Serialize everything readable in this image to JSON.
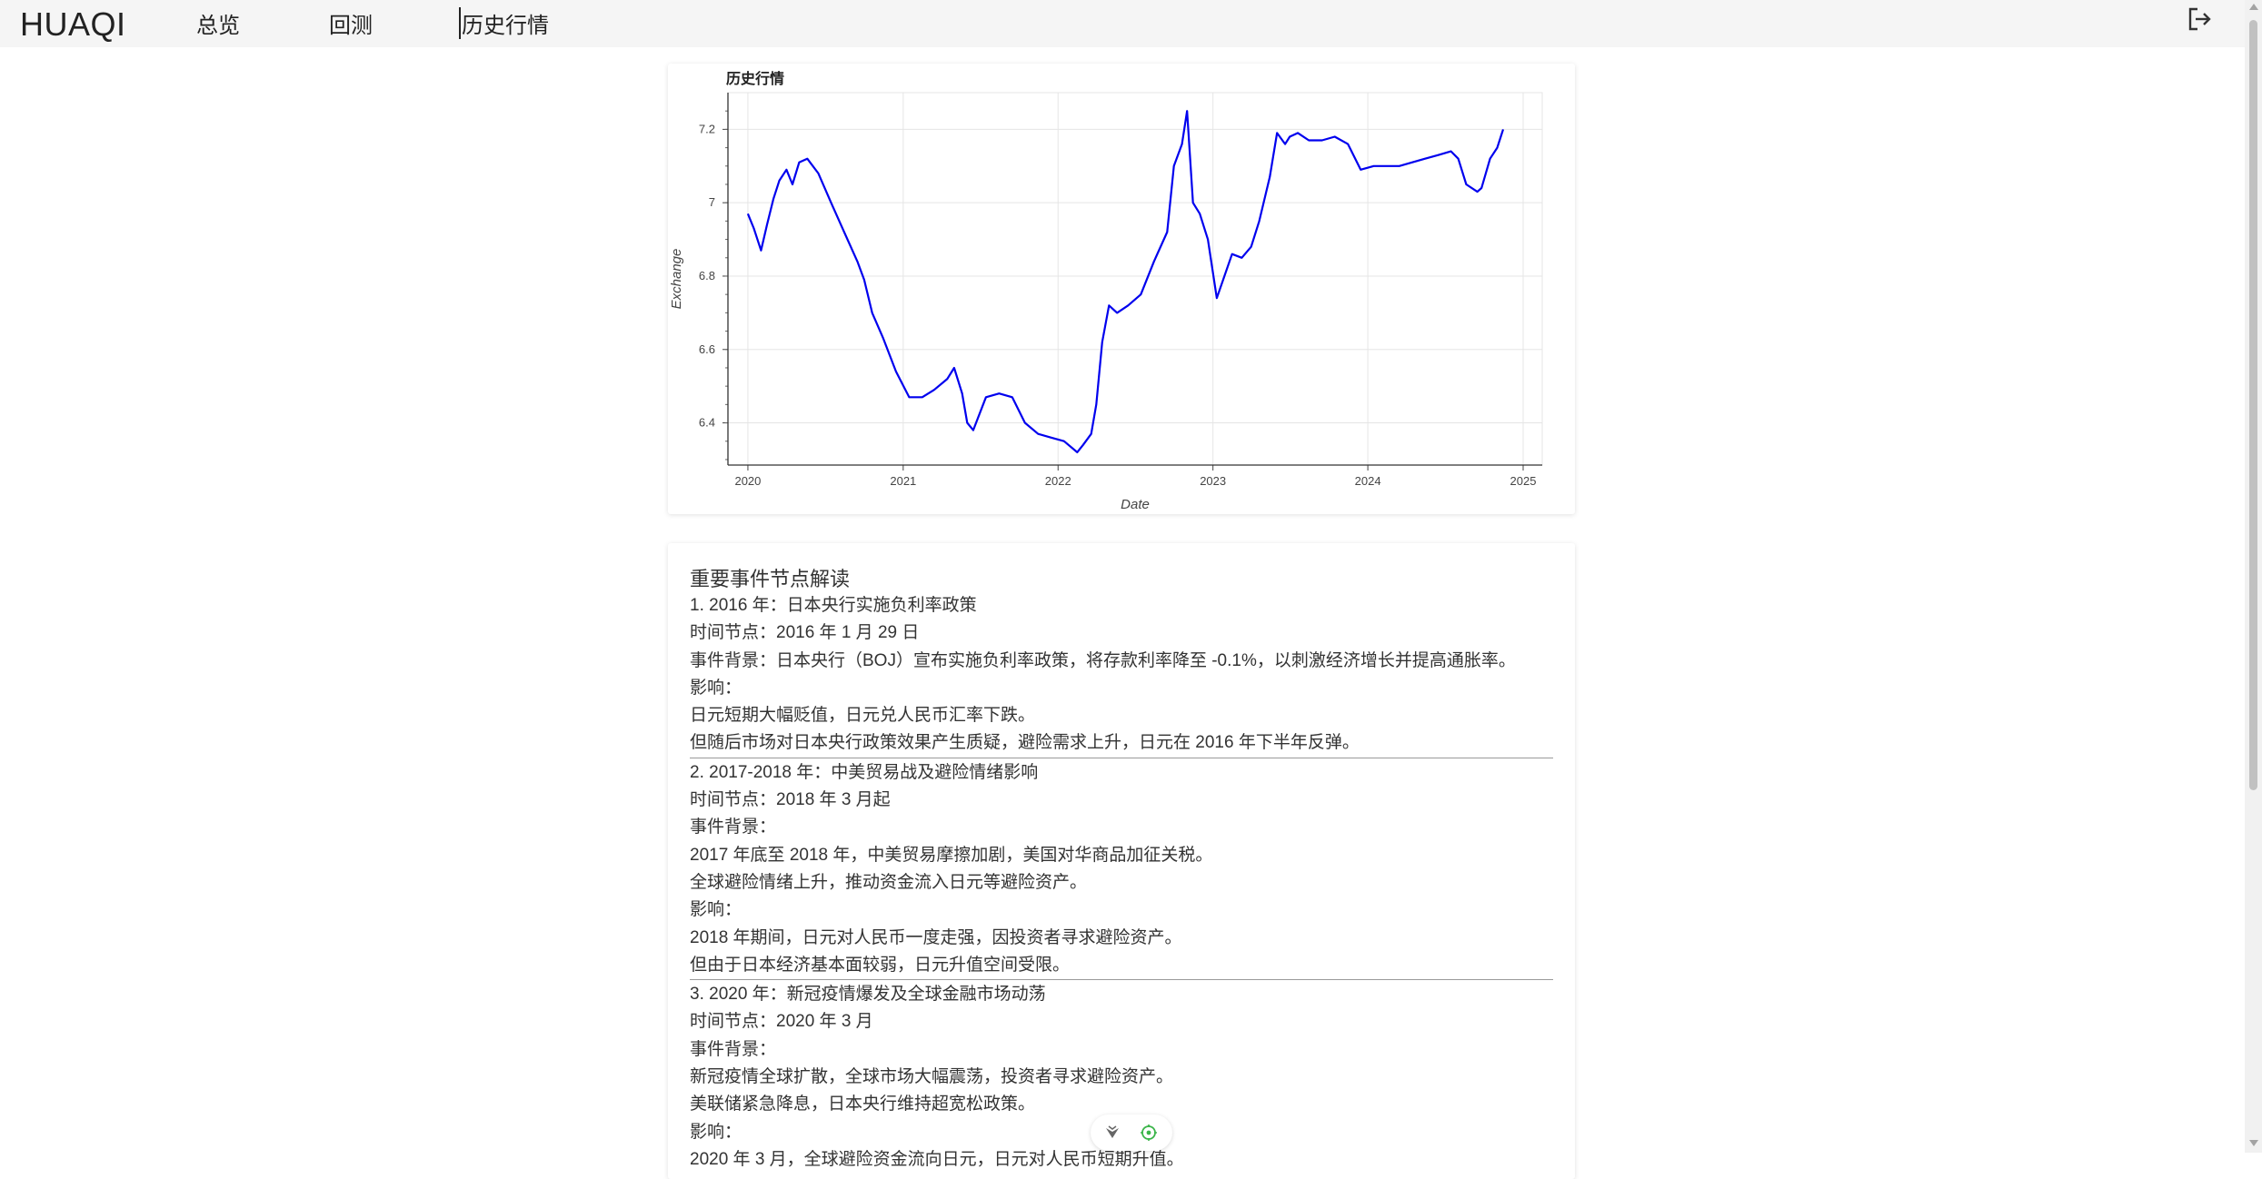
{
  "header": {
    "brand": "HUAQI",
    "nav": [
      "总览",
      "回测",
      "历史行情"
    ],
    "active_nav": "历史行情",
    "logout_icon": "logout-icon"
  },
  "chart_data": {
    "type": "line",
    "title": "历史行情",
    "xlabel": "Date",
    "ylabel": "Exchange",
    "x_ticks": [
      "2020",
      "2021",
      "2022",
      "2023",
      "2024",
      "2025"
    ],
    "y_ticks": [
      "6.4",
      "6.6",
      "6.8",
      "7",
      "7.2"
    ],
    "xlim": [
      "2019-11-15",
      "2025-02-15"
    ],
    "ylim": [
      6.285,
      7.3
    ],
    "grid": true,
    "line_color": "#0000ee",
    "series": [
      {
        "x": [
          "2020-01-01",
          "2020-01-15",
          "2020-02-01",
          "2020-02-15",
          "2020-03-01",
          "2020-03-15",
          "2020-04-01",
          "2020-04-15",
          "2020-05-01",
          "2020-05-20",
          "2020-06-15",
          "2020-07-15",
          "2020-08-15",
          "2020-09-15",
          "2020-10-01",
          "2020-10-20",
          "2020-11-15",
          "2020-12-15",
          "2021-01-15",
          "2021-02-15",
          "2021-03-15",
          "2021-04-15",
          "2021-05-01",
          "2021-05-20",
          "2021-06-01",
          "2021-06-15",
          "2021-07-15",
          "2021-08-15",
          "2021-09-15",
          "2021-10-15",
          "2021-11-15",
          "2021-12-15",
          "2022-01-15",
          "2022-02-15",
          "2022-03-01",
          "2022-03-20",
          "2022-04-01",
          "2022-04-15",
          "2022-05-01",
          "2022-05-20",
          "2022-06-15",
          "2022-07-15",
          "2022-08-15",
          "2022-09-15",
          "2022-10-01",
          "2022-10-20",
          "2022-11-01",
          "2022-11-15",
          "2022-12-01",
          "2022-12-20",
          "2023-01-10",
          "2023-01-25",
          "2023-02-15",
          "2023-03-10",
          "2023-04-01",
          "2023-04-20",
          "2023-05-15",
          "2023-06-01",
          "2023-06-20",
          "2023-07-01",
          "2023-07-20",
          "2023-08-15",
          "2023-09-15",
          "2023-10-15",
          "2023-11-15",
          "2023-12-15",
          "2024-01-15",
          "2024-02-15",
          "2024-03-15",
          "2024-04-15",
          "2024-05-15",
          "2024-06-15",
          "2024-07-15",
          "2024-08-01",
          "2024-08-20",
          "2024-09-15",
          "2024-09-25",
          "2024-10-15",
          "2024-11-01",
          "2024-11-15"
        ],
        "values": [
          6.97,
          6.93,
          6.87,
          6.94,
          7.01,
          7.06,
          7.09,
          7.05,
          7.11,
          7.12,
          7.08,
          7.0,
          6.92,
          6.84,
          6.79,
          6.7,
          6.63,
          6.54,
          6.47,
          6.47,
          6.49,
          6.52,
          6.55,
          6.48,
          6.4,
          6.38,
          6.47,
          6.48,
          6.47,
          6.4,
          6.37,
          6.36,
          6.35,
          6.32,
          6.34,
          6.37,
          6.45,
          6.62,
          6.72,
          6.7,
          6.72,
          6.75,
          6.84,
          6.92,
          7.1,
          7.16,
          7.25,
          7.0,
          6.97,
          6.9,
          6.74,
          6.79,
          6.86,
          6.85,
          6.88,
          6.95,
          7.07,
          7.19,
          7.16,
          7.18,
          7.19,
          7.17,
          7.17,
          7.18,
          7.16,
          7.09,
          7.1,
          7.1,
          7.1,
          7.11,
          7.12,
          7.13,
          7.14,
          7.12,
          7.05,
          7.03,
          7.04,
          7.12,
          7.15,
          7.2
        ]
      }
    ]
  },
  "events": {
    "title": "重要事件节点解读",
    "blocks": [
      [
        "1. 2016 年：日本央行实施负利率政策",
        "时间节点：2016 年 1 月 29 日",
        "事件背景：日本央行（BOJ）宣布实施负利率政策，将存款利率降至 -0.1%，以刺激经济增长并提高通胀率。",
        "影响：",
        "日元短期大幅贬值，日元兑人民币汇率下跌。",
        "但随后市场对日本央行政策效果产生质疑，避险需求上升，日元在 2016 年下半年反弹。"
      ],
      [
        "2. 2017-2018 年：中美贸易战及避险情绪影响",
        "时间节点：2018 年 3 月起",
        "事件背景：",
        "2017 年底至 2018 年，中美贸易摩擦加剧，美国对华商品加征关税。",
        "全球避险情绪上升，推动资金流入日元等避险资产。",
        "影响：",
        "2018 年期间，日元对人民币一度走强，因投资者寻求避险资产。",
        "但由于日本经济基本面较弱，日元升值空间受限。"
      ],
      [
        "3. 2020 年：新冠疫情爆发及全球金融市场动荡",
        "时间节点：2020 年 3 月",
        "事件背景：",
        "新冠疫情全球扩散，全球市场大幅震荡，投资者寻求避险资产。",
        "美联储紧急降息，日本央行维持超宽松政策。",
        "影响：",
        "2020 年 3 月，全球避险资金流向日元，日元对人民币短期升值。"
      ]
    ]
  },
  "float_tools": {
    "left_icon": "filter-down-icon",
    "right_icon": "target-icon"
  }
}
